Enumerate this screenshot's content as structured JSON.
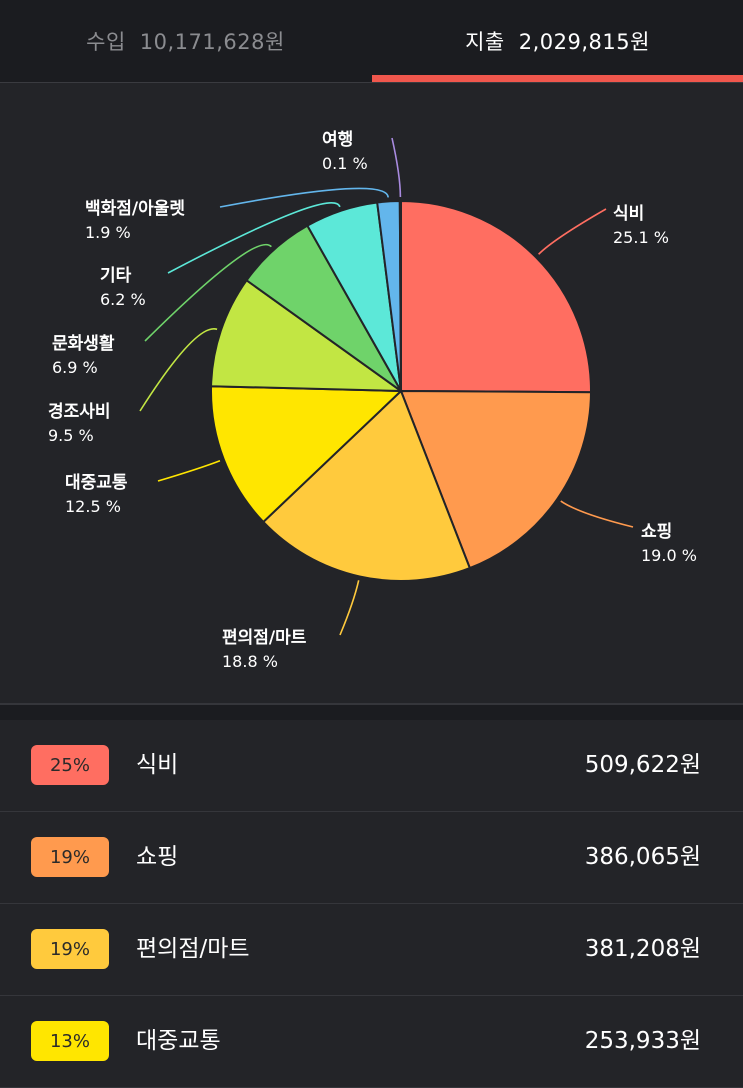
{
  "tabs": {
    "income": {
      "label": "수입",
      "amount": "10,171,628원"
    },
    "expense": {
      "label": "지출",
      "amount": "2,029,815원"
    }
  },
  "colors": {
    "accent": "#f0574d",
    "background": "#232428"
  },
  "chart_data": {
    "type": "pie",
    "slices": [
      {
        "name": "식비",
        "percent": 25.1,
        "label": "25.1 %",
        "color": "#ff6e61"
      },
      {
        "name": "쇼핑",
        "percent": 19.0,
        "label": "19.0 %",
        "color": "#ff9a4e"
      },
      {
        "name": "편의점/마트",
        "percent": 18.8,
        "label": "18.8 %",
        "color": "#ffca3d"
      },
      {
        "name": "대중교통",
        "percent": 12.5,
        "label": "12.5 %",
        "color": "#ffe600"
      },
      {
        "name": "경조사비",
        "percent": 9.5,
        "label": "9.5 %",
        "color": "#c2e643"
      },
      {
        "name": "문화생활",
        "percent": 6.9,
        "label": "6.9 %",
        "color": "#6fd36a"
      },
      {
        "name": "기타",
        "percent": 6.2,
        "label": "6.2 %",
        "color": "#5ce8d8"
      },
      {
        "name": "백화점/아울렛",
        "percent": 1.9,
        "label": "1.9 %",
        "color": "#63b6ec"
      },
      {
        "name": "여행",
        "percent": 0.1,
        "label": "0.1 %",
        "color": "#a98be0"
      }
    ]
  },
  "list": [
    {
      "badge": "25%",
      "name": "식비",
      "amount": "509,622원",
      "color": "#ff6e61"
    },
    {
      "badge": "19%",
      "name": "쇼핑",
      "amount": "386,065원",
      "color": "#ff9a4e"
    },
    {
      "badge": "19%",
      "name": "편의점/마트",
      "amount": "381,208원",
      "color": "#ffca3d"
    },
    {
      "badge": "13%",
      "name": "대중교통",
      "amount": "253,933원",
      "color": "#ffe600"
    }
  ]
}
